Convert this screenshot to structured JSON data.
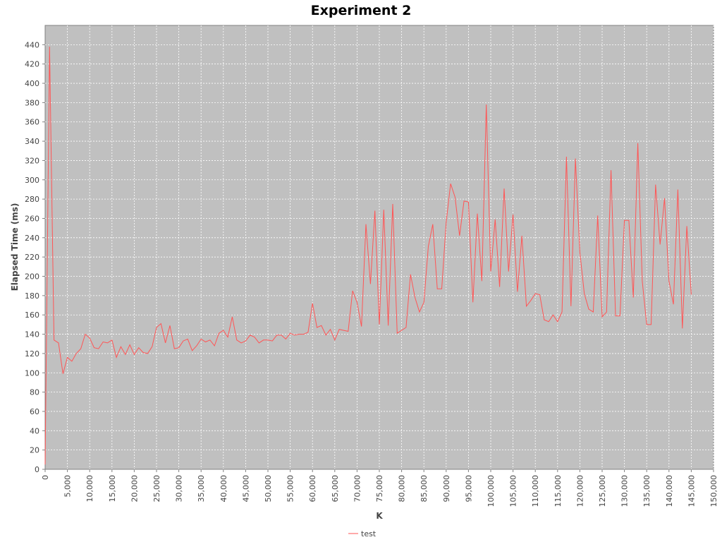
{
  "chart_data": {
    "type": "line",
    "title": "Experiment 2",
    "xlabel": "K",
    "ylabel": "Elapsed Time (ms)",
    "xlim": [
      0,
      150000
    ],
    "ylim": [
      0,
      460
    ],
    "grid": true,
    "legend_position": "bottom",
    "plot_background": "#c0c0c0",
    "series_color": "#ff5555",
    "x_ticks": [
      0,
      5000,
      10000,
      15000,
      20000,
      25000,
      30000,
      35000,
      40000,
      45000,
      50000,
      55000,
      60000,
      65000,
      70000,
      75000,
      80000,
      85000,
      90000,
      95000,
      100000,
      105000,
      110000,
      115000,
      120000,
      125000,
      130000,
      135000,
      140000,
      145000,
      150000
    ],
    "x_tick_labels": [
      "0",
      "5,000",
      "10,000",
      "15,000",
      "20,000",
      "25,000",
      "30,000",
      "35,000",
      "40,000",
      "45,000",
      "50,000",
      "55,000",
      "60,000",
      "65,000",
      "70,000",
      "75,000",
      "80,000",
      "85,000",
      "90,000",
      "95,000",
      "100,000",
      "105,000",
      "110,000",
      "115,000",
      "120,000",
      "125,000",
      "130,000",
      "135,000",
      "140,000",
      "145,000",
      "150,000"
    ],
    "y_ticks": [
      0,
      20,
      40,
      60,
      80,
      100,
      120,
      140,
      160,
      180,
      200,
      220,
      240,
      260,
      280,
      300,
      320,
      340,
      360,
      380,
      400,
      420,
      440
    ],
    "y_tick_labels": [
      "0",
      "20",
      "40",
      "60",
      "80",
      "100",
      "120",
      "140",
      "160",
      "180",
      "200",
      "220",
      "240",
      "260",
      "280",
      "300",
      "320",
      "340",
      "360",
      "380",
      "400",
      "420",
      "440"
    ],
    "series": [
      {
        "name": "test",
        "x": [
          0,
          1000,
          2000,
          3000,
          4000,
          5000,
          6000,
          7000,
          8000,
          9000,
          10000,
          11000,
          12000,
          13000,
          14000,
          15000,
          16000,
          17000,
          18000,
          19000,
          20000,
          21000,
          22000,
          23000,
          24000,
          25000,
          26000,
          27000,
          28000,
          29000,
          30000,
          31000,
          32000,
          33000,
          34000,
          35000,
          36000,
          37000,
          38000,
          39000,
          40000,
          41000,
          42000,
          43000,
          44000,
          45000,
          46000,
          47000,
          48000,
          49000,
          50000,
          51000,
          52000,
          53000,
          54000,
          55000,
          56000,
          57000,
          58000,
          59000,
          60000,
          61000,
          62000,
          63000,
          64000,
          65000,
          66000,
          67000,
          68000,
          69000,
          70000,
          71000,
          72000,
          73000,
          74000,
          75000,
          76000,
          77000,
          78000,
          79000,
          80000,
          81000,
          82000,
          83000,
          84000,
          85000,
          86000,
          87000,
          88000,
          89000,
          90000,
          91000,
          92000,
          93000,
          94000,
          95000,
          96000,
          97000,
          98000,
          99000,
          100000,
          101000,
          102000,
          103000,
          104000,
          105000,
          106000,
          107000,
          108000,
          109000,
          110000,
          111000,
          112000,
          113000,
          114000,
          115000,
          116000,
          117000,
          118000,
          119000,
          120000,
          121000,
          122000,
          123000,
          124000,
          125000,
          126000,
          127000,
          128000,
          129000,
          130000,
          131000,
          132000,
          133000,
          134000,
          135000,
          136000,
          137000,
          138000,
          139000,
          140000,
          141000,
          142000,
          143000,
          144000,
          145000
        ],
        "y": [
          5,
          438,
          134,
          131,
          99,
          116,
          112,
          120,
          125,
          140,
          136,
          126,
          125,
          132,
          131,
          134,
          116,
          127,
          119,
          129,
          119,
          126,
          121,
          120,
          127,
          147,
          151,
          131,
          149,
          125,
          126,
          133,
          135,
          123,
          128,
          135,
          132,
          134,
          128,
          141,
          144,
          137,
          158,
          134,
          131,
          133,
          139,
          137,
          131,
          134,
          134,
          133,
          139,
          139,
          135,
          141,
          139,
          140,
          140,
          142,
          172,
          147,
          149,
          139,
          145,
          134,
          145,
          144,
          143,
          185,
          173,
          148,
          254,
          192,
          268,
          150,
          269,
          149,
          275,
          141,
          144,
          147,
          202,
          178,
          163,
          173,
          231,
          254,
          187,
          187,
          256,
          296,
          282,
          242,
          278,
          277,
          173,
          265,
          195,
          378,
          205,
          259,
          189,
          291,
          205,
          264,
          184,
          242,
          169,
          175,
          182,
          181,
          155,
          153,
          160,
          153,
          163,
          324,
          169,
          322,
          225,
          182,
          166,
          163,
          263,
          158,
          163,
          310,
          159,
          159,
          258,
          258,
          178,
          338,
          195,
          150,
          150,
          295,
          233,
          281,
          195,
          171,
          290,
          146,
          252,
          181
        ]
      }
    ]
  }
}
